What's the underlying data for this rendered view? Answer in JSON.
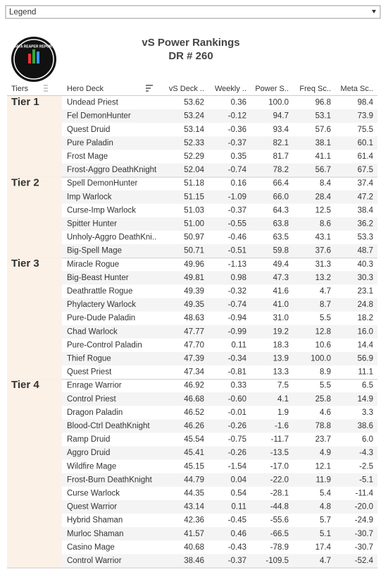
{
  "legend": {
    "label": "Legend"
  },
  "logo": {
    "text": "DATA REAPER REPORT"
  },
  "header": {
    "title": "vS Power Rankings",
    "subtitle": "DR # 260"
  },
  "table": {
    "columns": [
      "Tiers",
      "Hero Deck",
      "vS Deck ..",
      "Weekly ..",
      "Power S..",
      "Freq Sc..",
      "Meta Sc.."
    ],
    "groups": [
      {
        "tier": "Tier 1",
        "rows": [
          [
            "Undead Priest",
            "53.62",
            "0.36",
            "100.0",
            "96.8",
            "98.4"
          ],
          [
            "Fel DemonHunter",
            "53.24",
            "-0.12",
            "94.7",
            "53.1",
            "73.9"
          ],
          [
            "Quest Druid",
            "53.14",
            "-0.36",
            "93.4",
            "57.6",
            "75.5"
          ],
          [
            "Pure Paladin",
            "52.33",
            "-0.37",
            "82.1",
            "38.1",
            "60.1"
          ],
          [
            "Frost Mage",
            "52.29",
            "0.35",
            "81.7",
            "41.1",
            "61.4"
          ],
          [
            "Frost-Aggro DeathKnight",
            "52.04",
            "-0.74",
            "78.2",
            "56.7",
            "67.5"
          ]
        ]
      },
      {
        "tier": "Tier 2",
        "rows": [
          [
            "Spell DemonHunter",
            "51.18",
            "0.16",
            "66.4",
            "8.4",
            "37.4"
          ],
          [
            "Imp Warlock",
            "51.15",
            "-1.09",
            "66.0",
            "28.4",
            "47.2"
          ],
          [
            "Curse-Imp Warlock",
            "51.03",
            "-0.37",
            "64.3",
            "12.5",
            "38.4"
          ],
          [
            "Spitter Hunter",
            "51.00",
            "-0.55",
            "63.8",
            "8.6",
            "36.2"
          ],
          [
            "Unholy-Aggro DeathKni..",
            "50.97",
            "-0.46",
            "63.5",
            "43.1",
            "53.3"
          ],
          [
            "Big-Spell Mage",
            "50.71",
            "-0.51",
            "59.8",
            "37.6",
            "48.7"
          ]
        ]
      },
      {
        "tier": "Tier 3",
        "rows": [
          [
            "Miracle Rogue",
            "49.96",
            "-1.13",
            "49.4",
            "31.3",
            "40.3"
          ],
          [
            "Big-Beast Hunter",
            "49.81",
            "0.98",
            "47.3",
            "13.2",
            "30.3"
          ],
          [
            "Deathrattle Rogue",
            "49.39",
            "-0.32",
            "41.6",
            "4.7",
            "23.1"
          ],
          [
            "Phylactery Warlock",
            "49.35",
            "-0.74",
            "41.0",
            "8.7",
            "24.8"
          ],
          [
            "Pure-Dude Paladin",
            "48.63",
            "-0.94",
            "31.0",
            "5.5",
            "18.2"
          ],
          [
            "Chad Warlock",
            "47.77",
            "-0.99",
            "19.2",
            "12.8",
            "16.0"
          ],
          [
            "Pure-Control Paladin",
            "47.70",
            "0.11",
            "18.3",
            "10.6",
            "14.4"
          ],
          [
            "Thief Rogue",
            "47.39",
            "-0.34",
            "13.9",
            "100.0",
            "56.9"
          ],
          [
            "Quest Priest",
            "47.34",
            "-0.81",
            "13.3",
            "8.9",
            "11.1"
          ]
        ]
      },
      {
        "tier": "Tier 4",
        "rows": [
          [
            "Enrage Warrior",
            "46.92",
            "0.33",
            "7.5",
            "5.5",
            "6.5"
          ],
          [
            "Control Priest",
            "46.68",
            "-0.60",
            "4.1",
            "25.8",
            "14.9"
          ],
          [
            "Dragon Paladin",
            "46.52",
            "-0.01",
            "1.9",
            "4.6",
            "3.3"
          ],
          [
            "Blood-Ctrl DeathKnight",
            "46.26",
            "-0.26",
            "-1.6",
            "78.8",
            "38.6"
          ],
          [
            "Ramp Druid",
            "45.54",
            "-0.75",
            "-11.7",
            "23.7",
            "6.0"
          ],
          [
            "Aggro Druid",
            "45.41",
            "-0.26",
            "-13.5",
            "4.9",
            "-4.3"
          ],
          [
            "Wildfire Mage",
            "45.15",
            "-1.54",
            "-17.0",
            "12.1",
            "-2.5"
          ],
          [
            "Frost-Burn DeathKnight",
            "44.79",
            "0.04",
            "-22.0",
            "11.9",
            "-5.1"
          ],
          [
            "Curse Warlock",
            "44.35",
            "0.54",
            "-28.1",
            "5.4",
            "-11.4"
          ],
          [
            "Quest Warrior",
            "43.14",
            "0.11",
            "-44.8",
            "4.8",
            "-20.0"
          ],
          [
            "Hybrid Shaman",
            "42.36",
            "-0.45",
            "-55.6",
            "5.7",
            "-24.9"
          ],
          [
            "Murloc Shaman",
            "41.57",
            "0.46",
            "-66.5",
            "5.1",
            "-30.7"
          ],
          [
            "Casino Mage",
            "40.68",
            "-0.43",
            "-78.9",
            "17.4",
            "-30.7"
          ],
          [
            "Control Warrior",
            "38.46",
            "-0.37",
            "-109.5",
            "4.7",
            "-52.4"
          ]
        ]
      }
    ]
  }
}
